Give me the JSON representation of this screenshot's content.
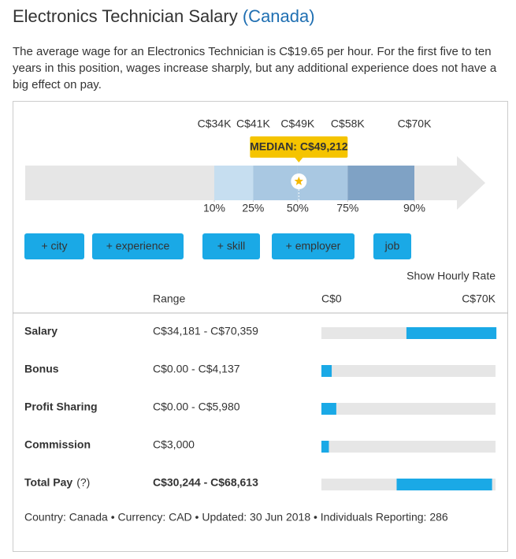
{
  "header": {
    "title": "Electronics Technician Salary",
    "location": "(Canada)",
    "summary": "The average wage for an Electronics Technician is C$19.65 per hour. For the first five to ten years in this position, wages increase sharply, but any additional experience does not have a big effect on pay."
  },
  "percentile_chart": {
    "ticks": [
      {
        "value": 34000,
        "label": "C$34K",
        "percentile": "10%"
      },
      {
        "value": 41000,
        "label": "C$41K",
        "percentile": "25%"
      },
      {
        "value": 49000,
        "label": "C$49K",
        "percentile": "50%"
      },
      {
        "value": 58000,
        "label": "C$58K",
        "percentile": "75%"
      },
      {
        "value": 70000,
        "label": "C$70K",
        "percentile": "90%"
      }
    ],
    "median": {
      "value": 49212,
      "label": "MEDIAN: C$49,212"
    }
  },
  "buttons": [
    "+ city",
    "+ experience",
    "+ skill",
    "+ employer",
    "job"
  ],
  "hourly_link": "Show Hourly Rate",
  "table": {
    "range_header": "Range",
    "scale": [
      {
        "value": 0,
        "label": "C$0"
      },
      {
        "value": 70000,
        "label": "C$70K"
      }
    ],
    "rows": [
      {
        "name": "Salary",
        "range": "C$34,181 - C$70,359",
        "low": 34181,
        "high": 70359
      },
      {
        "name": "Bonus",
        "range": "C$0.00 - C$4,137",
        "low": 0,
        "high": 4137
      },
      {
        "name": "Profit Sharing",
        "range": "C$0.00 - C$5,980",
        "low": 0,
        "high": 5980
      },
      {
        "name": "Commission",
        "range": "C$3,000",
        "high": 3000
      },
      {
        "name": "Total Pay",
        "help": "(?)",
        "range": "C$30,244 - C$68,613",
        "low": 30244,
        "high": 68613
      }
    ]
  },
  "footer": "Country: Canada • Currency: CAD • Updated: 30 Jun 2018 • Individuals Reporting: 286"
}
